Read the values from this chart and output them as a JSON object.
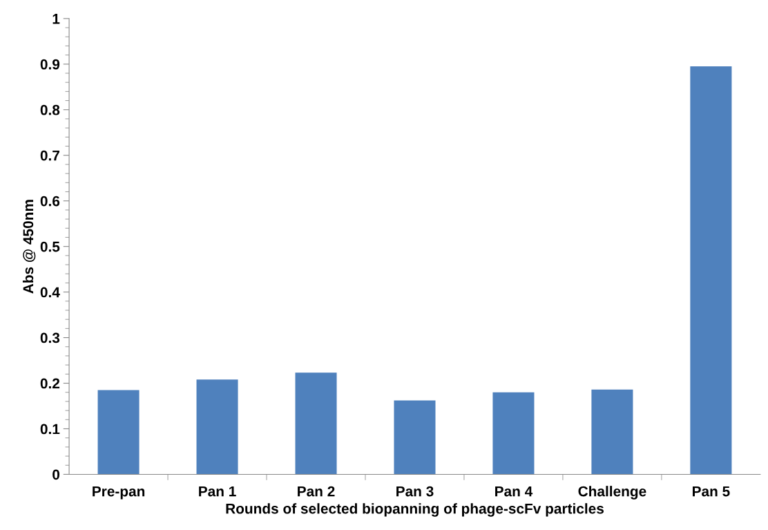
{
  "chart_data": {
    "type": "bar",
    "xlabel": "Rounds of selected biopanning of phage-scFv particles",
    "ylabel": "Abs @ 450nm",
    "categories": [
      "Pre-pan",
      "Pan 1",
      "Pan 2",
      "Pan 3",
      "Pan 4",
      "Challenge",
      "Pan 5"
    ],
    "values": [
      0.185,
      0.208,
      0.223,
      0.162,
      0.18,
      0.186,
      0.895
    ],
    "color": "#4f81bd",
    "ylim": [
      0,
      1
    ],
    "yticks": [
      {
        "value": 0,
        "label": "0"
      },
      0.1,
      0.2,
      0.3,
      0.4,
      0.5,
      0.6,
      0.7,
      0.8,
      0.9,
      {
        "value": 1,
        "label": "1"
      }
    ],
    "grid": false,
    "legend": false
  }
}
